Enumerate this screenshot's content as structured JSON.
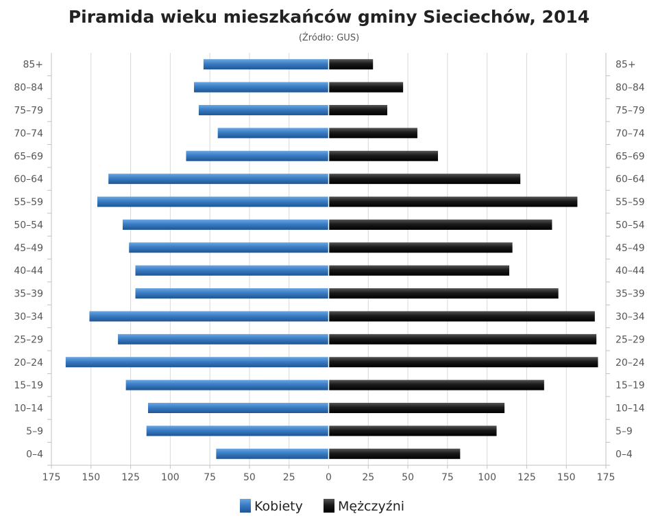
{
  "chart_data": {
    "type": "bar",
    "orientation": "horizontal-pyramid",
    "title": "Piramida wieku mieszkańców gminy Sieciechów, 2014",
    "subtitle": "(Źródło: GUS)",
    "categories": [
      "0–4",
      "5–9",
      "10–14",
      "15–19",
      "20–24",
      "25–29",
      "30–34",
      "35–39",
      "40–44",
      "45–49",
      "50–54",
      "55–59",
      "60–64",
      "65–69",
      "70–74",
      "75–79",
      "80–84",
      "85+"
    ],
    "series": [
      {
        "name": "Kobiety",
        "side": "left",
        "color": "#3a7dc4",
        "values": [
          71,
          115,
          114,
          128,
          166,
          133,
          151,
          122,
          122,
          126,
          130,
          146,
          139,
          90,
          70,
          82,
          85,
          79
        ]
      },
      {
        "name": "Mężczyźni",
        "side": "right",
        "color": "#151515",
        "values": [
          83,
          106,
          111,
          136,
          170,
          169,
          168,
          145,
          114,
          116,
          141,
          157,
          121,
          69,
          56,
          37,
          47,
          28
        ]
      }
    ],
    "x_ticks": [
      "175",
      "150",
      "125",
      "100",
      "75",
      "50",
      "25",
      "0",
      "25",
      "50",
      "75",
      "100",
      "125",
      "150",
      "175"
    ],
    "xlim": [
      -175,
      175
    ],
    "grid": true,
    "legend_position": "bottom-center"
  }
}
